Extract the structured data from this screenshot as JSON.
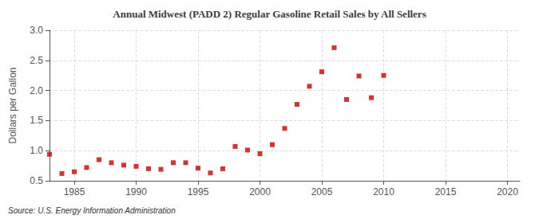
{
  "chart_data": {
    "type": "scatter",
    "title": "Annual Midwest (PADD 2) Regular Gasoline Retail Sales by All Sellers",
    "y_label": "Dollars per Gallon",
    "annotation": "Source: U.S. Energy Information Administration",
    "x": [
      1983,
      1984,
      1985,
      1986,
      1987,
      1988,
      1989,
      1990,
      1991,
      1992,
      1993,
      1994,
      1995,
      1996,
      1997,
      1998,
      1999,
      2000,
      2001,
      2002,
      2003,
      2004,
      2005,
      2006,
      2007,
      2008,
      2009,
      2010
    ],
    "values": [
      0.94,
      0.62,
      0.65,
      0.72,
      0.85,
      0.8,
      0.76,
      0.74,
      0.7,
      0.69,
      0.8,
      0.8,
      0.71,
      0.63,
      0.7,
      1.07,
      1.01,
      0.95,
      1.1,
      1.37,
      1.77,
      2.07,
      2.31,
      2.71,
      1.85,
      2.24,
      1.88,
      2.25
    ],
    "color": "#cc0000",
    "marker": "square",
    "xlim": [
      1983,
      2021
    ],
    "xticks": [
      1985,
      1990,
      1995,
      2000,
      2005,
      2010,
      2015,
      2020
    ],
    "ylim": [
      0.5,
      3.0
    ],
    "yticks": [
      {
        "value": 0.5,
        "label": "0.5"
      },
      {
        "value": 1.0,
        "label": "1.0"
      },
      {
        "value": 1.5,
        "label": "1.5"
      },
      {
        "value": 2.0,
        "label": "2.0"
      },
      {
        "value": 2.5,
        "label": "2.5"
      },
      {
        "value": 3.0,
        "label": "3.0"
      }
    ],
    "grid": true
  }
}
